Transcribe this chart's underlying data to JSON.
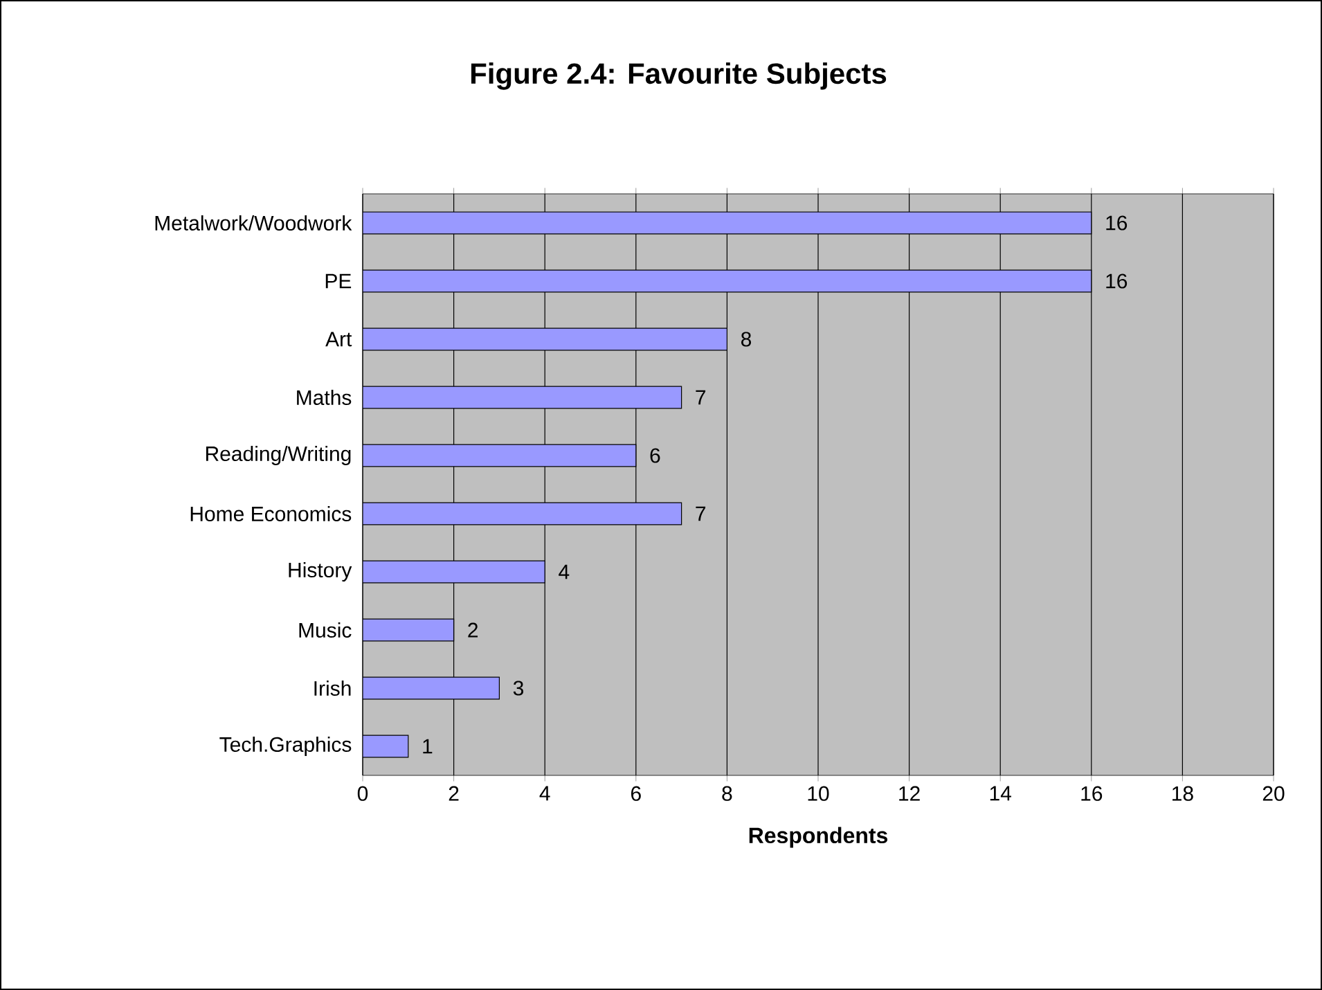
{
  "chart_data": {
    "type": "bar",
    "orientation": "horizontal",
    "title": "Figure 2.4:  Favourite Subjects",
    "xlabel": "Respondents",
    "categories": [
      "Metalwork/Woodwork",
      "PE",
      "Art",
      "Maths",
      "Reading/Writing",
      "Home Economics",
      "History",
      "Music",
      "Irish",
      "Tech.Graphics"
    ],
    "values": [
      16,
      16,
      8,
      7,
      6,
      7,
      4,
      2,
      3,
      1
    ],
    "color": "#9999ff",
    "xlim": [
      0,
      20
    ],
    "xticks": [
      0,
      2,
      4,
      6,
      8,
      10,
      12,
      14,
      16,
      18,
      20
    ],
    "grid": "x",
    "data_labels": true
  }
}
